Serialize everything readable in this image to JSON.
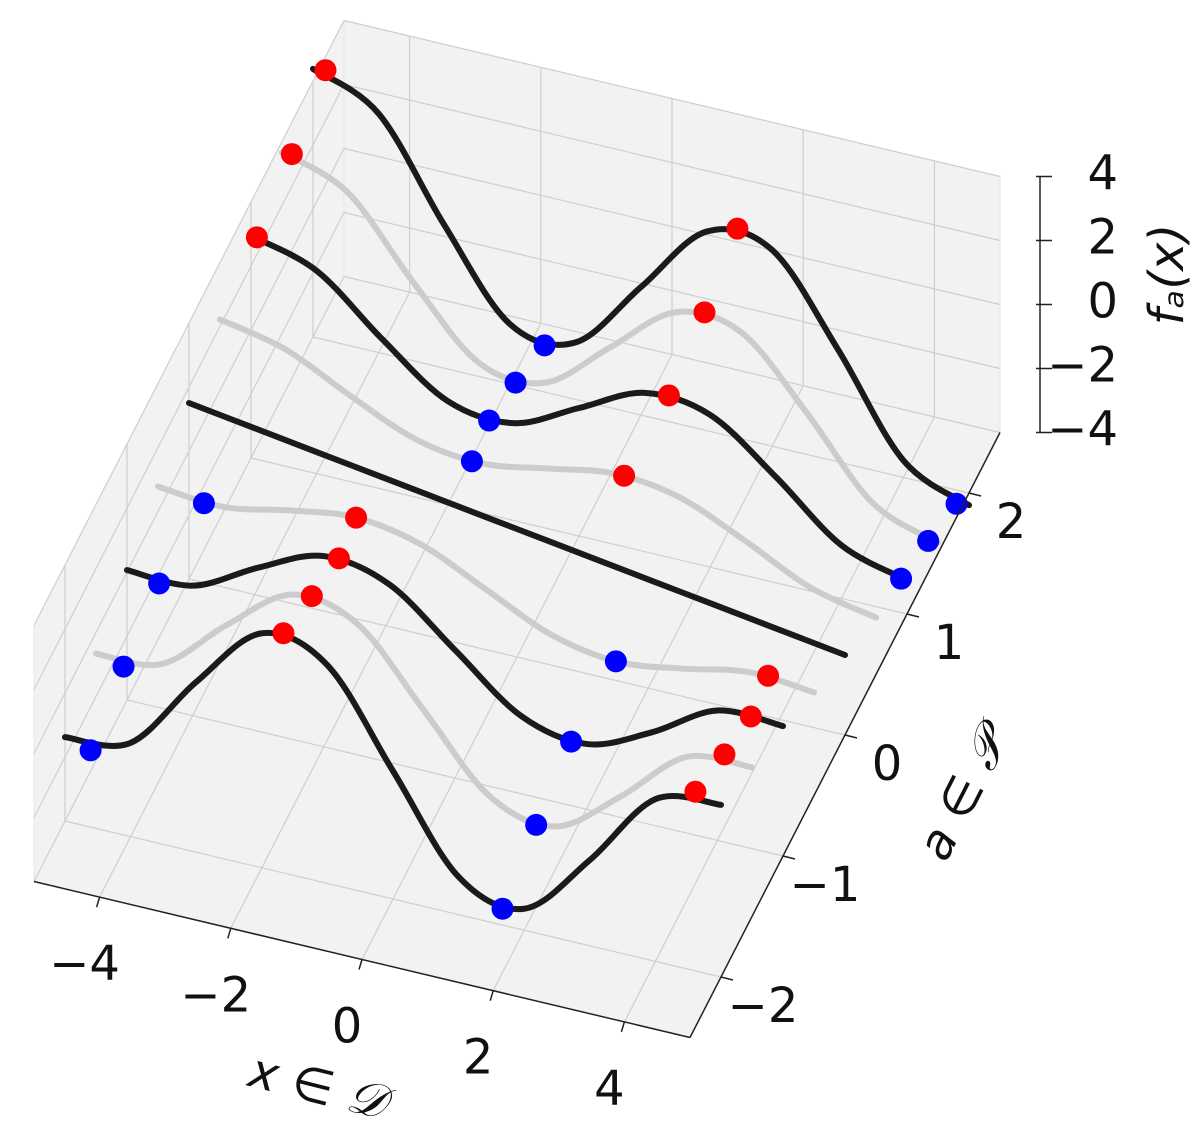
{
  "chart_data": {
    "type": "line3d",
    "xlabel": "x ∈ 𝒟",
    "ylabel": "a ∈ 𝒫",
    "zlabel": "fₐ(x)",
    "xlim": [
      -5,
      5
    ],
    "ylim": [
      -2.5,
      2.5
    ],
    "zlim": [
      -4,
      4
    ],
    "xticks": [
      {
        "value": -4,
        "label": "−4"
      },
      {
        "value": -2,
        "label": "−2"
      },
      0,
      2,
      4
    ],
    "yticks": [
      {
        "value": -2,
        "label": "−2"
      },
      {
        "value": -1,
        "label": "−1"
      },
      0,
      1,
      2
    ],
    "zticks": [
      {
        "value": -4,
        "label": "−4"
      },
      {
        "value": -2,
        "label": "−2"
      },
      0,
      2,
      4
    ],
    "grid": true,
    "x": [
      -5,
      -4,
      -3,
      -2,
      -1,
      0,
      1,
      2,
      3,
      4,
      5
    ],
    "series": [
      {
        "y": -2,
        "color": "#1a1a1a",
        "values": [
          -1.38,
          -1.07,
          1.32,
          3.33,
          2.82,
          0,
          -2.82,
          -3.33,
          -1.32,
          1.07,
          1.38
        ]
      },
      {
        "y": -1.5,
        "color": "#cccccc",
        "values": [
          -0.66,
          -0.5,
          1.22,
          2.65,
          2.19,
          0,
          -2.19,
          -2.65,
          -1.22,
          0.5,
          0.66
        ]
      },
      {
        "y": -1,
        "color": "#1a1a1a",
        "values": [
          0.06,
          0.06,
          1.11,
          1.96,
          1.56,
          0,
          -1.56,
          -1.96,
          -1.11,
          0.06,
          0.06
        ]
      },
      {
        "y": -0.5,
        "color": "#cccccc",
        "values": [
          0.78,
          0.63,
          1.01,
          1.28,
          0.93,
          0,
          -0.93,
          -1.28,
          -1.01,
          -0.63,
          -0.78
        ]
      },
      {
        "y": 0,
        "color": "#1a1a1a",
        "values": [
          1.5,
          1.2,
          0.9,
          0.6,
          0.3,
          0,
          -0.3,
          -0.6,
          -0.9,
          -1.2,
          -1.5
        ]
      },
      {
        "y": 0.5,
        "color": "#cccccc",
        "values": [
          2.22,
          1.77,
          0.79,
          -0.08,
          -0.33,
          0,
          0.33,
          0.08,
          -0.79,
          -1.77,
          -2.22
        ]
      },
      {
        "y": 1,
        "color": "#1a1a1a",
        "values": [
          2.94,
          2.34,
          0.69,
          -0.76,
          -0.96,
          0,
          0.96,
          0.76,
          -0.69,
          -2.34,
          -2.94
        ]
      },
      {
        "y": 1.5,
        "color": "#cccccc",
        "values": [
          3.66,
          2.9,
          0.58,
          -1.45,
          -1.59,
          0,
          1.59,
          1.45,
          -0.58,
          -2.9,
          -3.66
        ]
      },
      {
        "y": 2,
        "color": "#1a1a1a",
        "values": [
          4.38,
          3.47,
          0.48,
          -2.13,
          -2.22,
          0,
          2.22,
          2.13,
          -0.48,
          -3.47,
          -4.38
        ]
      }
    ],
    "points": [
      {
        "color": "#0000ff",
        "x": [
          -1.47,
          4.81,
          -1.44,
          4.85,
          -1.37,
          4.91,
          -1.16,
          1.98,
          -4.3,
          1.77,
          -4.51,
          1.71,
          -4.58,
          1.67,
          -4.61
        ],
        "y": [
          2,
          2,
          1.5,
          1.5,
          1,
          1,
          0.5,
          -0.5,
          -0.5,
          -1,
          -1,
          -1.5,
          -1.5,
          -2,
          -2
        ],
        "values": [
          -2.54,
          -4.43,
          -1.8,
          -3.68,
          -1.06,
          -2.94,
          -0.34,
          -1.28,
          0.6,
          -2,
          -0.12,
          -2.74,
          -0.86,
          -3.49,
          -1.6
        ]
      },
      {
        "color": "#ff0000",
        "x": [
          1.47,
          -4.81,
          1.44,
          -4.85,
          1.37,
          -4.91,
          1.16,
          -1.98,
          4.3,
          -1.77,
          4.51,
          -1.71,
          4.58,
          -1.67,
          4.61
        ],
        "y": [
          2,
          2,
          1.5,
          1.5,
          1,
          1,
          0.5,
          -0.5,
          -0.5,
          -1,
          -1,
          -1.5,
          -1.5,
          -2,
          -2
        ],
        "values": [
          2.54,
          4.43,
          1.8,
          3.68,
          1.06,
          2.94,
          0.34,
          1.28,
          -0.6,
          2,
          0.12,
          2.74,
          0.86,
          3.49,
          1.6
        ]
      }
    ]
  }
}
